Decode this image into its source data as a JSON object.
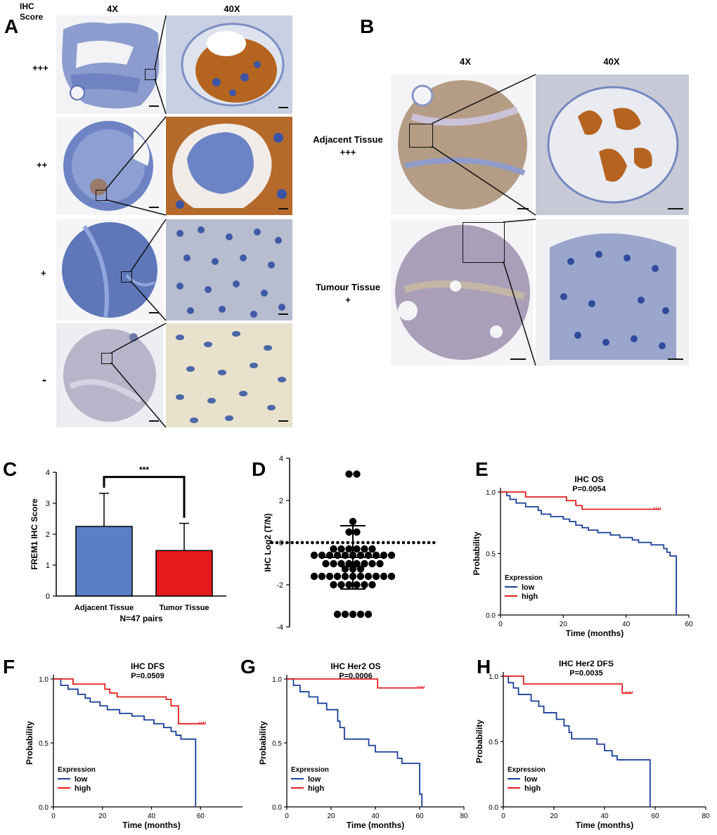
{
  "colors": {
    "low": "#1b3f9a",
    "high": "#e0201e",
    "adjacent_bar": "#5a7ec7",
    "tumor_bar": "#e8191c",
    "stain_brown": "#a5612a",
    "hematoxylin_blue": "#4a6bb5"
  },
  "panels": {
    "A": "A",
    "B": "B",
    "C": "C",
    "D": "D",
    "E": "E",
    "F": "F",
    "G": "G",
    "H": "H"
  },
  "panel_a": {
    "score_header": [
      "IHC",
      "Score"
    ],
    "mag_low": "4X",
    "mag_high": "40X",
    "scores": [
      "+++",
      "++",
      "+",
      "-"
    ]
  },
  "panel_b": {
    "mag_low": "4X",
    "mag_high": "40X",
    "rows": [
      {
        "tissue": "Adjacent Tissue",
        "score": "+++"
      },
      {
        "tissue": "Tumour Tissue",
        "score": "+"
      }
    ]
  },
  "chart_data": [
    {
      "panel": "C",
      "type": "bar",
      "categories": [
        "Adjacent Tissue",
        "Tumor Tissue"
      ],
      "values": [
        2.25,
        1.47
      ],
      "error_upper": [
        3.32,
        2.35
      ],
      "ylabel": "FREM1 IHC Score",
      "xlabel": "N=47 pairs",
      "ylim": [
        0,
        4
      ],
      "yticks": [
        "0",
        "1",
        "2",
        "3",
        "4"
      ],
      "significance": "***"
    },
    {
      "panel": "D",
      "type": "scatter",
      "ylabel": "IHC Log2 (T/N)",
      "ylim": [
        -4,
        4
      ],
      "yticks": [
        "-4",
        "-2",
        "0",
        "2",
        "4"
      ],
      "mean": -0.7,
      "sd_range": [
        -2.2,
        0.8
      ],
      "points": [
        {
          "y": 3.25,
          "n": 2
        },
        {
          "y": 1.0,
          "n": 1
        },
        {
          "y": 0.5,
          "n": 2
        },
        {
          "y": 0.0,
          "n": 33
        },
        {
          "y": -0.3,
          "n": 6
        },
        {
          "y": -0.6,
          "n": 11
        },
        {
          "y": -1.0,
          "n": 8
        },
        {
          "y": -1.25,
          "n": 3
        },
        {
          "y": -1.6,
          "n": 11
        },
        {
          "y": -2.0,
          "n": 6
        },
        {
          "y": -3.4,
          "n": 5
        }
      ]
    },
    {
      "panel": "E",
      "type": "line",
      "title": "IHC OS",
      "pvalue": "P=0.0054",
      "xlabel": "Time (months)",
      "ylabel": "Probability",
      "xlim": [
        0,
        60
      ],
      "ylim": [
        0,
        1.0
      ],
      "xticks": [
        "0",
        "20",
        "40",
        "60"
      ],
      "yticks": [
        "0.0",
        "0.5",
        "1.0"
      ],
      "legend_title": "Expression",
      "legend_position": "bottom-left",
      "series": [
        {
          "name": "low",
          "steps": [
            [
              0,
              1.0
            ],
            [
              2,
              0.97
            ],
            [
              3,
              0.94
            ],
            [
              5,
              0.91
            ],
            [
              8,
              0.88
            ],
            [
              12,
              0.85
            ],
            [
              13,
              0.82
            ],
            [
              16,
              0.8
            ],
            [
              20,
              0.78
            ],
            [
              22,
              0.76
            ],
            [
              24,
              0.73
            ],
            [
              26,
              0.71
            ],
            [
              28,
              0.69
            ],
            [
              31,
              0.67
            ],
            [
              35,
              0.65
            ],
            [
              38,
              0.63
            ],
            [
              42,
              0.61
            ],
            [
              44,
              0.59
            ],
            [
              48,
              0.57
            ],
            [
              52,
              0.54
            ],
            [
              53,
              0.51
            ],
            [
              54,
              0.48
            ],
            [
              56,
              0.0
            ]
          ]
        },
        {
          "name": "high",
          "steps": [
            [
              0,
              1.0
            ],
            [
              8,
              0.96
            ],
            [
              21,
              0.93
            ],
            [
              24,
              0.89
            ],
            [
              26,
              0.86
            ],
            [
              51,
              0.86
            ]
          ]
        }
      ]
    },
    {
      "panel": "F",
      "type": "line",
      "title": "IHC DFS",
      "pvalue": "P=0.0509",
      "xlabel": "Time (months)",
      "ylabel": "Probability",
      "xlim": [
        0,
        80
      ],
      "ylim": [
        0,
        1.0
      ],
      "xticks": [
        "0",
        "20",
        "40",
        "60",
        "80"
      ],
      "yticks": [
        "0.0",
        "0.5",
        "1.0"
      ],
      "legend_title": "Expression",
      "legend_position": "bottom-left",
      "series": [
        {
          "name": "low",
          "steps": [
            [
              0,
              1.0
            ],
            [
              3,
              0.95
            ],
            [
              6,
              0.92
            ],
            [
              10,
              0.88
            ],
            [
              13,
              0.85
            ],
            [
              15,
              0.82
            ],
            [
              19,
              0.79
            ],
            [
              22,
              0.76
            ],
            [
              27,
              0.73
            ],
            [
              32,
              0.71
            ],
            [
              37,
              0.68
            ],
            [
              41,
              0.65
            ],
            [
              45,
              0.62
            ],
            [
              48,
              0.59
            ],
            [
              50,
              0.56
            ],
            [
              52,
              0.53
            ],
            [
              58,
              0.0
            ]
          ]
        },
        {
          "name": "high",
          "steps": [
            [
              0,
              1.0
            ],
            [
              8,
              0.96
            ],
            [
              21,
              0.92
            ],
            [
              23,
              0.89
            ],
            [
              26,
              0.86
            ],
            [
              46,
              0.84
            ],
            [
              48,
              0.79
            ],
            [
              51,
              0.65
            ],
            [
              62,
              0.65
            ]
          ]
        }
      ]
    },
    {
      "panel": "G",
      "type": "line",
      "title": "IHC Her2 OS",
      "pvalue": "P=0.0006",
      "xlabel": "Time (months)",
      "ylabel": "Probability",
      "xlim": [
        0,
        80
      ],
      "ylim": [
        0,
        1.0
      ],
      "xticks": [
        "0",
        "20",
        "40",
        "60",
        "80"
      ],
      "yticks": [
        "0.0",
        "0.5",
        "1.0"
      ],
      "legend_title": "Expression",
      "legend_position": "bottom-left",
      "series": [
        {
          "name": "low",
          "steps": [
            [
              0,
              1.0
            ],
            [
              3,
              0.95
            ],
            [
              6,
              0.9
            ],
            [
              10,
              0.86
            ],
            [
              14,
              0.81
            ],
            [
              18,
              0.76
            ],
            [
              23,
              0.67
            ],
            [
              24,
              0.62
            ],
            [
              26,
              0.53
            ],
            [
              37,
              0.48
            ],
            [
              40,
              0.43
            ],
            [
              50,
              0.38
            ],
            [
              52,
              0.34
            ],
            [
              60,
              0.1
            ],
            [
              61,
              0.0
            ]
          ]
        },
        {
          "name": "high",
          "steps": [
            [
              0,
              1.0
            ],
            [
              40,
              1.0
            ],
            [
              41,
              0.93
            ],
            [
              62,
              0.93
            ]
          ]
        }
      ]
    },
    {
      "panel": "H",
      "type": "line",
      "title": "IHC Her2 DFS",
      "pvalue": "P=0.0035",
      "xlabel": "Time (months)",
      "ylabel": "Probability",
      "xlim": [
        0,
        80
      ],
      "ylim": [
        0,
        1.0
      ],
      "xticks": [
        "0",
        "20",
        "40",
        "60",
        "80"
      ],
      "yticks": [
        "0.0",
        "0.5",
        "1.0"
      ],
      "legend_title": "Expression",
      "legend_position": "bottom-left",
      "series": [
        {
          "name": "low",
          "steps": [
            [
              0,
              1.0
            ],
            [
              2,
              0.95
            ],
            [
              4,
              0.91
            ],
            [
              6,
              0.86
            ],
            [
              11,
              0.81
            ],
            [
              14,
              0.77
            ],
            [
              16,
              0.72
            ],
            [
              21,
              0.67
            ],
            [
              24,
              0.62
            ],
            [
              26,
              0.57
            ],
            [
              27,
              0.52
            ],
            [
              37,
              0.48
            ],
            [
              40,
              0.43
            ],
            [
              43,
              0.39
            ],
            [
              45,
              0.36
            ],
            [
              58,
              0.0
            ]
          ]
        },
        {
          "name": "high",
          "steps": [
            [
              0,
              1.0
            ],
            [
              8,
              0.94
            ],
            [
              46,
              0.94
            ],
            [
              47,
              0.87
            ],
            [
              51,
              0.87
            ]
          ]
        }
      ]
    }
  ]
}
